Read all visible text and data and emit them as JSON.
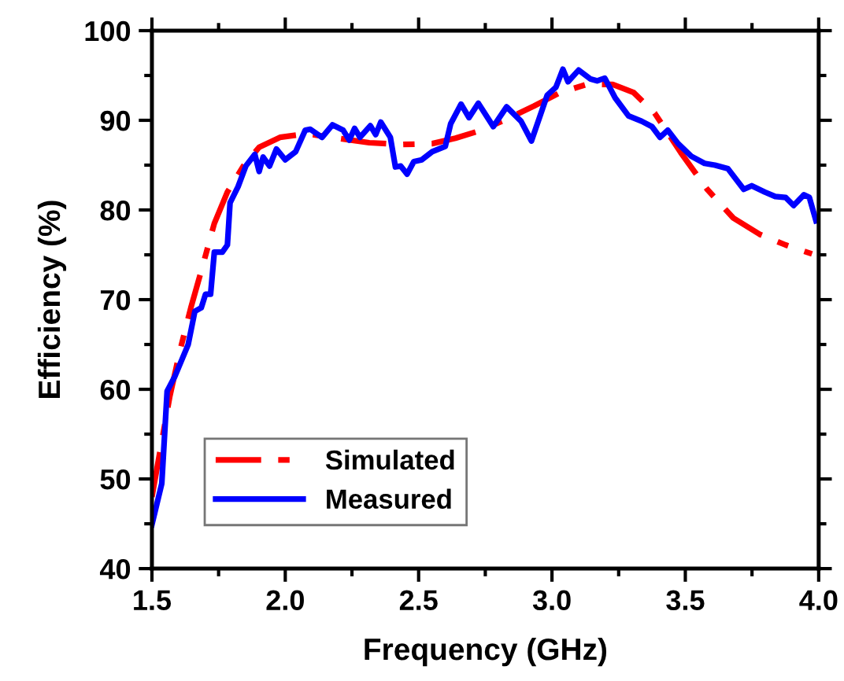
{
  "chart_data": {
    "type": "line",
    "xlabel": "Frequency (GHz)",
    "ylabel": "Efficiency (%)",
    "xlim": [
      1.5,
      4.0
    ],
    "xticks": [
      {
        "value": 1.5,
        "label": "1.5"
      },
      {
        "value": 2.0,
        "label": "2.0"
      },
      {
        "value": 2.5,
        "label": "2.5"
      },
      {
        "value": 3.0,
        "label": "3.0"
      },
      {
        "value": 3.5,
        "label": "3.5"
      },
      {
        "value": 4.0,
        "label": "4.0"
      }
    ],
    "ylim": [
      40,
      100
    ],
    "yticks": [
      40,
      50,
      60,
      70,
      80,
      90,
      100
    ],
    "grid": false,
    "legend": "bottom left",
    "marker": "none",
    "series": [
      {
        "name": "Simulated",
        "color": "#ff0000",
        "line_style": "dashdot",
        "x": [
          1.5,
          1.528,
          1.567,
          1.606,
          1.646,
          1.685,
          1.734,
          1.783,
          1.843,
          1.902,
          1.98,
          2.079,
          2.197,
          2.315,
          2.433,
          2.551,
          2.638,
          2.736,
          2.835,
          2.933,
          3.031,
          3.129,
          3.228,
          3.306,
          3.385,
          3.483,
          3.582,
          3.68,
          3.778,
          3.876,
          3.975
        ],
        "values": [
          48,
          52.7,
          59.2,
          64.4,
          69.1,
          73.2,
          78.5,
          82.0,
          84.9,
          87.0,
          88.1,
          88.5,
          88.0,
          87.5,
          87.3,
          87.4,
          88.0,
          88.9,
          90.2,
          91.6,
          93.1,
          94.0,
          94.0,
          93.1,
          90.8,
          86.4,
          82.3,
          79.1,
          77.3,
          76.1,
          75.1
        ]
      },
      {
        "name": "Measured",
        "color": "#0000ff",
        "line_style": "solid",
        "x": [
          1.5,
          1.537,
          1.557,
          1.587,
          1.636,
          1.661,
          1.685,
          1.701,
          1.72,
          1.734,
          1.764,
          1.783,
          1.793,
          1.823,
          1.852,
          1.886,
          1.902,
          1.917,
          1.941,
          1.967,
          2.0,
          2.039,
          2.075,
          2.094,
          2.138,
          2.177,
          2.217,
          2.24,
          2.26,
          2.28,
          2.319,
          2.339,
          2.358,
          2.394,
          2.413,
          2.433,
          2.457,
          2.482,
          2.512,
          2.551,
          2.6,
          2.62,
          2.659,
          2.689,
          2.724,
          2.78,
          2.83,
          2.884,
          2.923,
          2.982,
          3.015,
          3.041,
          3.06,
          3.1,
          3.145,
          3.169,
          3.198,
          3.237,
          3.287,
          3.336,
          3.375,
          3.405,
          3.434,
          3.473,
          3.522,
          3.572,
          3.611,
          3.66,
          3.719,
          3.749,
          3.798,
          3.837,
          3.876,
          3.906,
          3.945,
          3.965,
          3.99
        ],
        "values": [
          44.9,
          49.5,
          59.8,
          61.5,
          65.0,
          68.7,
          69.1,
          70.6,
          70.6,
          75.3,
          75.3,
          76.1,
          80.8,
          82.6,
          84.9,
          86.2,
          84.3,
          85.9,
          84.9,
          86.8,
          85.6,
          86.5,
          88.9,
          89.0,
          88.1,
          89.5,
          88.9,
          87.8,
          89.1,
          88.1,
          89.4,
          88.4,
          89.8,
          88.1,
          84.8,
          84.9,
          84.0,
          85.4,
          85.6,
          86.5,
          87.1,
          89.6,
          91.8,
          90.3,
          91.9,
          89.3,
          91.5,
          89.9,
          87.7,
          92.8,
          93.7,
          95.7,
          94.3,
          95.6,
          94.6,
          94.4,
          94.7,
          92.5,
          90.5,
          89.9,
          89.3,
          88.1,
          88.9,
          87.4,
          86.0,
          85.2,
          85.0,
          84.6,
          82.3,
          82.7,
          82.0,
          81.5,
          81.4,
          80.5,
          81.7,
          81.4,
          78.8
        ]
      }
    ]
  }
}
